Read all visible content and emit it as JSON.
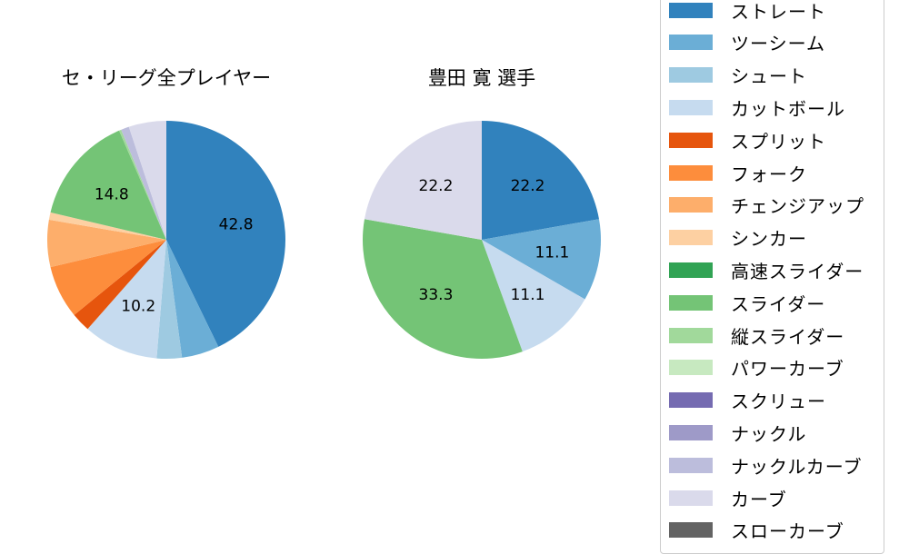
{
  "chart_data": [
    {
      "type": "pie",
      "title": "セ・リーグ全プレイヤー",
      "categories": [
        "ストレート",
        "ツーシーム",
        "シュート",
        "カットボール",
        "スプリット",
        "フォーク",
        "チェンジアップ",
        "シンカー",
        "スライダー",
        "縦スライダー",
        "ナックルカーブ",
        "カーブ"
      ],
      "values": [
        42.8,
        5.1,
        3.4,
        10.2,
        2.6,
        7.2,
        6.4,
        1.0,
        14.8,
        0.3,
        1.1,
        5.1
      ],
      "labels_shown": {
        "ストレート": "42.8",
        "カットボール": "10.2",
        "スライダー": "14.8"
      },
      "startangle": 90,
      "direction": "clockwise"
    },
    {
      "type": "pie",
      "title": "豊田 寛 選手",
      "categories": [
        "ストレート",
        "ツーシーム",
        "カットボール",
        "スライダー",
        "カーブ"
      ],
      "values": [
        22.2,
        11.1,
        11.1,
        33.3,
        22.2
      ],
      "labels_shown": {
        "ストレート": "22.2",
        "ツーシーム": "11.1",
        "カットボール": "11.1",
        "スライダー": "33.3",
        "カーブ": "22.2"
      },
      "startangle": 90,
      "direction": "clockwise"
    }
  ],
  "colors": {
    "ストレート": "#3182bd",
    "ツーシーム": "#6baed6",
    "シュート": "#9ecae1",
    "カットボール": "#c6dbef",
    "スプリット": "#e6550d",
    "フォーク": "#fd8d3c",
    "チェンジアップ": "#fdae6b",
    "シンカー": "#fdd0a2",
    "高速スライダー": "#31a354",
    "スライダー": "#74c476",
    "縦スライダー": "#a1d99b",
    "パワーカーブ": "#c7e9c0",
    "スクリュー": "#756bb1",
    "ナックル": "#9e9ac8",
    "ナックルカーブ": "#bcbddc",
    "カーブ": "#dadaeb",
    "スローカーブ": "#636363"
  },
  "legend": {
    "items": [
      "ストレート",
      "ツーシーム",
      "シュート",
      "カットボール",
      "スプリット",
      "フォーク",
      "チェンジアップ",
      "シンカー",
      "高速スライダー",
      "スライダー",
      "縦スライダー",
      "パワーカーブ",
      "スクリュー",
      "ナックル",
      "ナックルカーブ",
      "カーブ",
      "スローカーブ"
    ]
  }
}
